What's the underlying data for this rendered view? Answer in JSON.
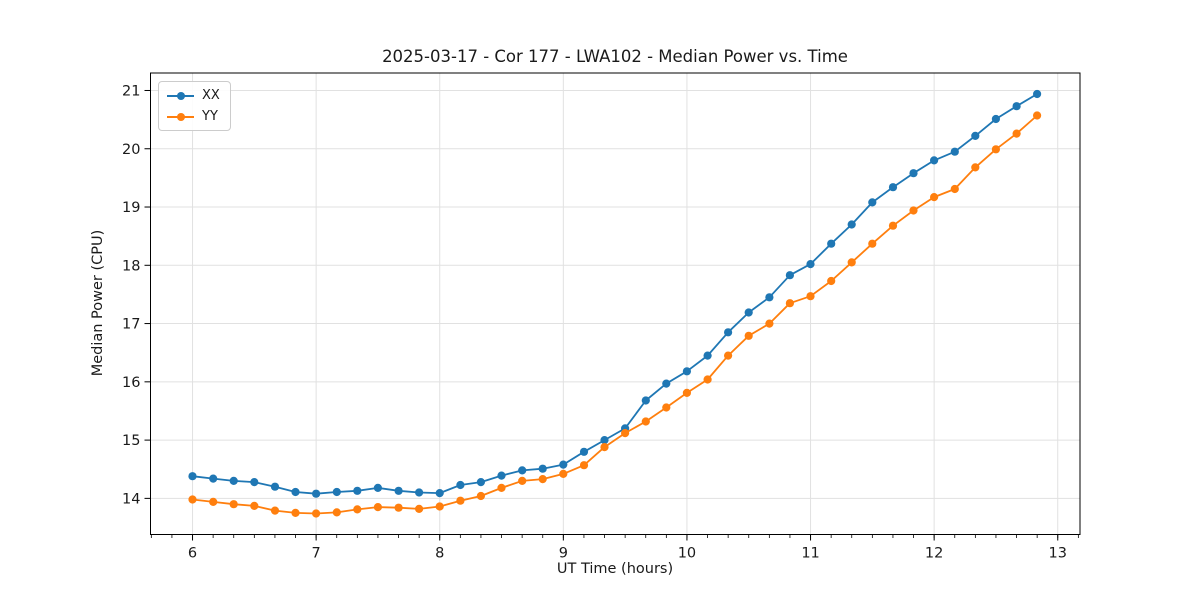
{
  "figure": {
    "background": "#ffffff"
  },
  "colors": {
    "grid": "#e1e1e1",
    "spine": "#000000",
    "tick": "#000000",
    "text": "#1a1a1a",
    "series_blue": "#1f77b4",
    "series_orange": "#ff7f0e"
  },
  "chart_data": {
    "type": "line",
    "title": "2025-03-17 - Cor 177 - LWA102 - Median Power vs. Time",
    "xlabel": "UT Time (hours)",
    "ylabel": "Median Power (CPU)",
    "xlim": [
      5.66,
      13.18
    ],
    "ylim": [
      13.38,
      21.3
    ],
    "xticks": [
      6,
      7,
      8,
      9,
      10,
      11,
      12,
      13
    ],
    "yticks": [
      14,
      15,
      16,
      17,
      18,
      19,
      20,
      21
    ],
    "x_minor_step": 0.166667,
    "grid": true,
    "legend_position": "upper-left",
    "marker": "circle",
    "x": [
      6.0,
      6.167,
      6.333,
      6.5,
      6.667,
      6.833,
      7.0,
      7.167,
      7.333,
      7.5,
      7.667,
      7.833,
      8.0,
      8.167,
      8.333,
      8.5,
      8.667,
      8.833,
      9.0,
      9.167,
      9.333,
      9.5,
      9.667,
      9.833,
      10.0,
      10.167,
      10.333,
      10.5,
      10.667,
      10.833,
      11.0,
      11.167,
      11.333,
      11.5,
      11.667,
      11.833,
      12.0,
      12.167,
      12.333,
      12.5,
      12.667,
      12.833
    ],
    "series": [
      {
        "name": "XX",
        "color": "#1f77b4",
        "values": [
          14.38,
          14.34,
          14.3,
          14.28,
          14.2,
          14.11,
          14.08,
          14.11,
          14.13,
          14.18,
          14.13,
          14.1,
          14.09,
          14.23,
          14.28,
          14.39,
          14.48,
          14.51,
          14.58,
          14.8,
          15.0,
          15.2,
          15.68,
          15.97,
          16.18,
          16.45,
          16.85,
          17.19,
          17.45,
          17.83,
          18.02,
          18.37,
          18.7,
          19.08,
          19.34,
          19.58,
          19.8,
          19.95,
          20.22,
          20.51,
          20.73,
          20.94
        ]
      },
      {
        "name": "YY",
        "color": "#ff7f0e",
        "values": [
          13.98,
          13.94,
          13.9,
          13.87,
          13.79,
          13.75,
          13.74,
          13.76,
          13.81,
          13.85,
          13.84,
          13.82,
          13.86,
          13.96,
          14.04,
          14.18,
          14.3,
          14.33,
          14.42,
          14.57,
          14.88,
          15.12,
          15.32,
          15.56,
          15.81,
          16.04,
          16.45,
          16.79,
          17.0,
          17.35,
          17.47,
          17.73,
          18.05,
          18.37,
          18.68,
          18.94,
          19.17,
          19.31,
          19.68,
          19.99,
          20.26,
          20.57
        ]
      }
    ]
  }
}
